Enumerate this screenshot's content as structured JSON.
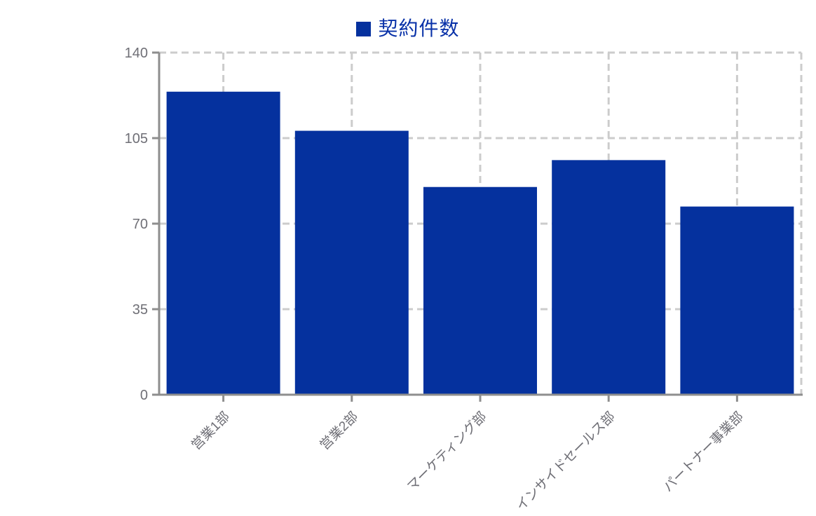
{
  "legend": {
    "label": "契約件数"
  },
  "chart_data": {
    "type": "bar",
    "title": "",
    "xlabel": "",
    "ylabel": "",
    "categories": [
      "営業1部",
      "営業2部",
      "マーケティング部",
      "インサイドセールス部",
      "パートナー事業部"
    ],
    "series": [
      {
        "name": "契約件数",
        "values": [
          124,
          108,
          85,
          96,
          77
        ]
      }
    ],
    "values": [
      124,
      108,
      85,
      96,
      77
    ],
    "ylim": [
      0,
      140
    ],
    "yticks": [
      0,
      35,
      70,
      105,
      140
    ],
    "grid": {
      "show": true,
      "style": "dashed",
      "vertical_at": "category-centers-and-right-border"
    },
    "legend_position": "top-center",
    "x_label_rotation_deg": -45,
    "colors": {
      "bar": "#05319e",
      "legend_text": "#0831a8",
      "axis": "#8e8e8e",
      "tick_label": "#6f6f76",
      "gridline": "#cccccc",
      "background": "#ffffff"
    }
  }
}
